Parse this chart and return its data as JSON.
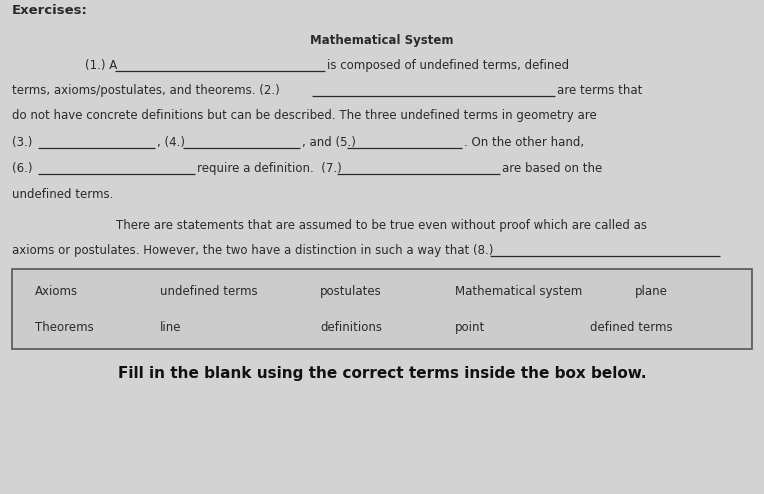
{
  "background_color": "#d3d3d3",
  "title_exercises": "Exercises:",
  "title_main": "Mathematical System",
  "text_color": "#2a2a2a",
  "line_color": "#2a2a2a",
  "box_bg": "#cccccc",
  "box_border": "#555555",
  "footer_color": "#111111",
  "box_row1": [
    "Axioms",
    "undefined terms",
    "postulates",
    "Mathematical system",
    "plane"
  ],
  "box_row2": [
    "Theorems",
    "line",
    "definitions",
    "point",
    "defined terms"
  ],
  "footer": "Fill in the blank using the correct terms inside the box below."
}
